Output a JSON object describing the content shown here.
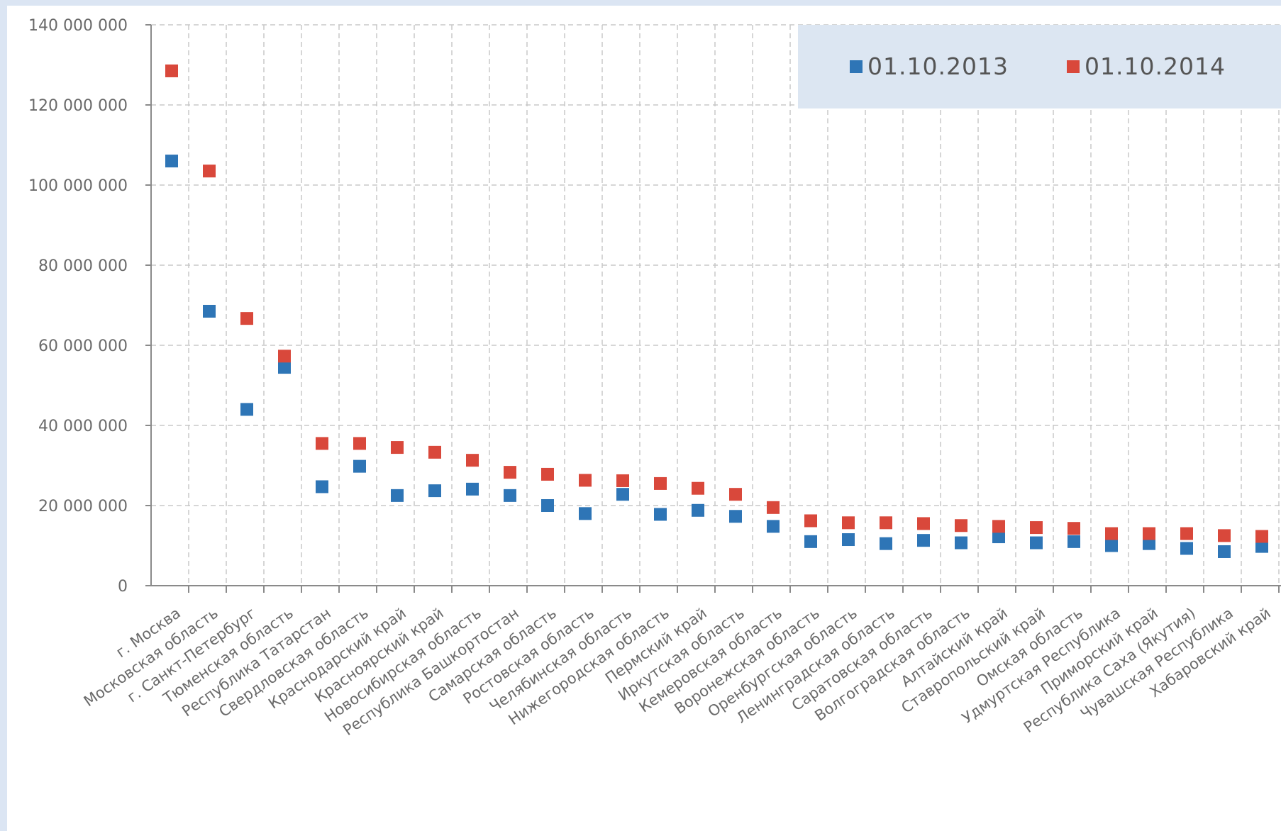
{
  "chart_data": {
    "type": "scatter",
    "title": "",
    "xlabel": "",
    "ylabel": "",
    "ylim": [
      0,
      140000000
    ],
    "yticks": [
      0,
      20000000,
      40000000,
      60000000,
      80000000,
      100000000,
      120000000,
      140000000
    ],
    "ytick_labels": [
      "0",
      "20 000 000",
      "40 000 000",
      "60 000 000",
      "80 000 000",
      "100 000 000",
      "120 000 000",
      "140 000 000"
    ],
    "grid": true,
    "legend_position": "top-right",
    "categories": [
      "г. Москва",
      "Московская область",
      "г. Санкт-Петербург",
      "Тюменская область",
      "Республика Татарстан",
      "Свердловская область",
      "Краснодарский край",
      "Красноярский край",
      "Новосибирская область",
      "Республика Башкортостан",
      "Самарская область",
      "Ростовская область",
      "Челябинская область",
      "Нижегородская область",
      "Пермский край",
      "Иркутская область",
      "Кемеровская область",
      "Воронежская область",
      "Оренбургская область",
      "Ленинградская область",
      "Саратовская область",
      "Волгоградская область",
      "Алтайский край",
      "Ставропольский край",
      "Омская область",
      "Удмуртская Республика",
      "Приморский край",
      "Республика Саха (Якутия)",
      "Чувашская Республика",
      "Хабаровский край"
    ],
    "series": [
      {
        "name": "01.10.2013",
        "color": "#2e75b6",
        "values": [
          106000000,
          68500000,
          44000000,
          54500000,
          24700000,
          29800000,
          22500000,
          23700000,
          24100000,
          22500000,
          20000000,
          18000000,
          22800000,
          17800000,
          18800000,
          17300000,
          14800000,
          11000000,
          11500000,
          10500000,
          11300000,
          10700000,
          12200000,
          10700000,
          11000000,
          10000000,
          10500000,
          9300000,
          8500000,
          9800000
        ]
      },
      {
        "name": "01.10.2014",
        "color": "#d9483b",
        "values": [
          128500000,
          103500000,
          66700000,
          57300000,
          35500000,
          35500000,
          34500000,
          33300000,
          31300000,
          28300000,
          27800000,
          26300000,
          26200000,
          25500000,
          24300000,
          22800000,
          19500000,
          16200000,
          15700000,
          15700000,
          15500000,
          15000000,
          14800000,
          14500000,
          14300000,
          13000000,
          13000000,
          13000000,
          12500000,
          12300000
        ]
      }
    ]
  }
}
